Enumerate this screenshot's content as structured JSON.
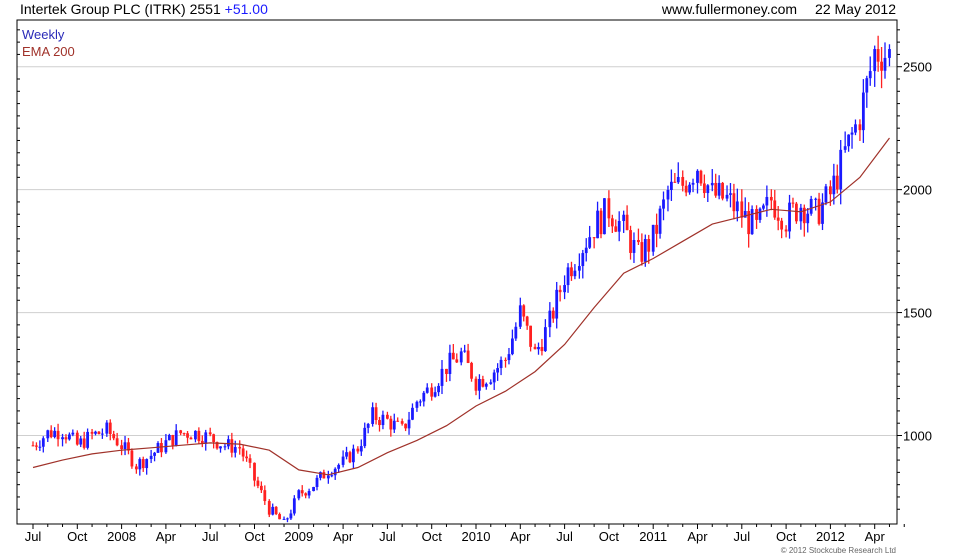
{
  "header": {
    "title": "Intertek Group PLC (ITRK)",
    "price": "2551",
    "change": "+51.00",
    "site": "www.fullermoney.com",
    "date": "22 May 2012"
  },
  "footer": {
    "copyright": "© 2012 Stockcube Research Ltd"
  },
  "colors": {
    "up": "#1a1aff",
    "down": "#ff2020",
    "ema": "#a0322a",
    "grid": "#cfcfcf"
  },
  "chart_data": {
    "type": "candlestick",
    "legend": [
      "Weekly",
      "EMA 200"
    ],
    "ylim": [
      640,
      2690
    ],
    "y_ticks": [
      1000,
      1500,
      2000,
      2500
    ],
    "x_tick_labels": [
      "Jul",
      "Oct",
      "2008",
      "Apr",
      "Jul",
      "Oct",
      "2009",
      "Apr",
      "Jul",
      "Oct",
      "2010",
      "Apr",
      "Jul",
      "Oct",
      "2011",
      "Apr",
      "Jul",
      "Oct",
      "2012",
      "Apr"
    ],
    "grid": true,
    "price_series": {
      "name": "Weekly",
      "x": [
        "2007-07",
        "2007-08",
        "2007-09",
        "2007-10",
        "2007-11",
        "2007-12",
        "2008-01",
        "2008-02",
        "2008-03",
        "2008-04",
        "2008-05",
        "2008-06",
        "2008-07",
        "2008-08",
        "2008-09",
        "2008-10",
        "2008-11",
        "2008-12",
        "2009-01",
        "2009-02",
        "2009-03",
        "2009-04",
        "2009-05",
        "2009-06",
        "2009-07",
        "2009-08",
        "2009-09",
        "2009-10",
        "2009-11",
        "2009-12",
        "2010-01",
        "2010-02",
        "2010-03",
        "2010-04",
        "2010-05",
        "2010-06",
        "2010-07",
        "2010-08",
        "2010-09",
        "2010-10",
        "2010-11",
        "2010-12",
        "2011-01",
        "2011-02",
        "2011-03",
        "2011-04",
        "2011-05",
        "2011-06",
        "2011-07",
        "2011-08",
        "2011-09",
        "2011-10",
        "2011-11",
        "2011-12",
        "2012-01",
        "2012-02",
        "2012-03",
        "2012-04",
        "2012-05"
      ],
      "values": [
        960,
        1010,
        1020,
        960,
        1000,
        1020,
        960,
        880,
        920,
        970,
        1010,
        1010,
        990,
        960,
        950,
        820,
        700,
        640,
        760,
        800,
        860,
        890,
        950,
        1080,
        1060,
        1020,
        1140,
        1200,
        1280,
        1330,
        1220,
        1250,
        1310,
        1500,
        1330,
        1460,
        1650,
        1750,
        1850,
        1920,
        1840,
        1730,
        1800,
        1990,
        2020,
        2100,
        1980,
        1960,
        1900,
        1840,
        1960,
        1880,
        1940,
        1900,
        1980,
        2150,
        2300,
        2560,
        2550
      ]
    },
    "ema_series": {
      "name": "EMA 200",
      "x": [
        "2007-07",
        "2007-09",
        "2007-11",
        "2008-01",
        "2008-03",
        "2008-05",
        "2008-07",
        "2008-09",
        "2008-11",
        "2009-01",
        "2009-03",
        "2009-05",
        "2009-07",
        "2009-09",
        "2009-11",
        "2010-01",
        "2010-03",
        "2010-05",
        "2010-07",
        "2010-09",
        "2010-11",
        "2011-01",
        "2011-03",
        "2011-05",
        "2011-07",
        "2011-09",
        "2011-11",
        "2012-01",
        "2012-03",
        "2012-05"
      ],
      "values": [
        870,
        900,
        925,
        940,
        950,
        960,
        970,
        965,
        940,
        860,
        840,
        870,
        930,
        980,
        1040,
        1120,
        1180,
        1260,
        1370,
        1520,
        1660,
        1720,
        1790,
        1860,
        1890,
        1920,
        1910,
        1950,
        2050,
        2210
      ]
    }
  }
}
